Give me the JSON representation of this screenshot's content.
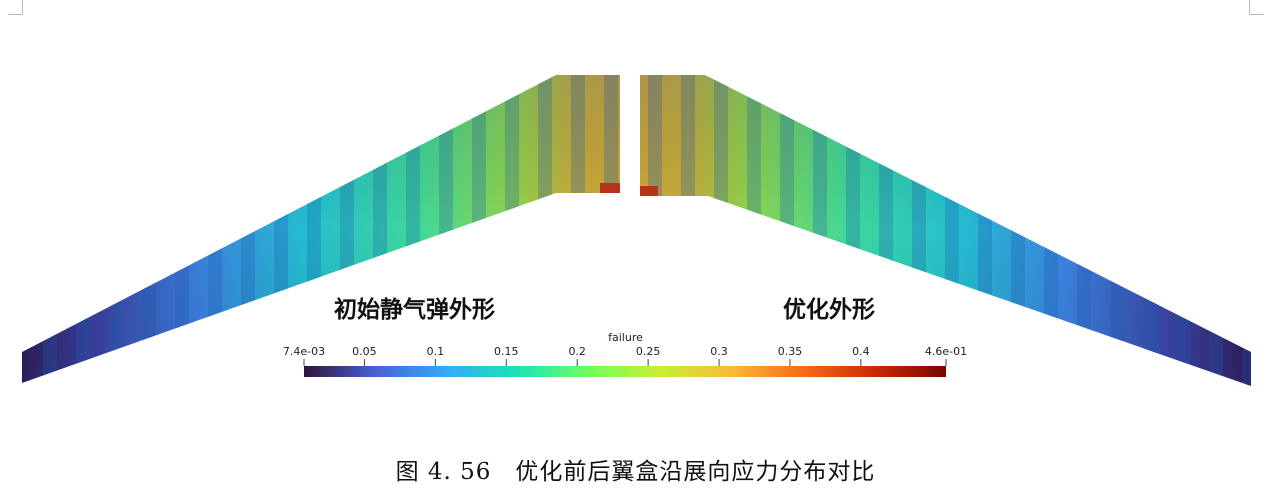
{
  "labels": {
    "left_wing": "初始静气弹外形",
    "right_wing": "优化外形"
  },
  "colorbar": {
    "title": "failure",
    "ticks": [
      "7.4e-03",
      "0.05",
      "0.1",
      "0.15",
      "0.2",
      "0.25",
      "0.3",
      "0.35",
      "0.4",
      "4.6e-01"
    ],
    "min": 0.0074,
    "max": 0.46,
    "colormap": [
      "#30123b",
      "#4662d7",
      "#36aaf9",
      "#1ae4b6",
      "#72fe5e",
      "#c8ef34",
      "#faba39",
      "#f66b19",
      "#ca2a04",
      "#7a0403"
    ]
  },
  "caption": "图 4. 56　优化前后翼盒沿展向应力分布对比"
}
